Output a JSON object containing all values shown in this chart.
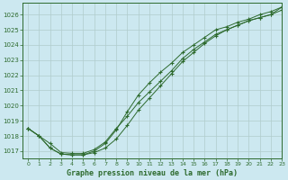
{
  "title": "Graphe pression niveau de la mer (hPa)",
  "bg_color": "#cce8f0",
  "grid_color": "#b0cccc",
  "line_color": "#2d6a2d",
  "xlim": [
    -0.5,
    23
  ],
  "ylim": [
    1016.5,
    1026.8
  ],
  "yticks": [
    1017,
    1018,
    1019,
    1020,
    1021,
    1022,
    1023,
    1024,
    1025,
    1026
  ],
  "xticks": [
    0,
    1,
    2,
    3,
    4,
    5,
    6,
    7,
    8,
    9,
    10,
    11,
    12,
    13,
    14,
    15,
    16,
    17,
    18,
    19,
    20,
    21,
    22,
    23
  ],
  "series": [
    [
      1018.5,
      1018.0,
      1017.5,
      1016.9,
      1016.85,
      1016.85,
      1017.1,
      1017.6,
      1018.5,
      1019.3,
      1020.2,
      1020.9,
      1021.6,
      1022.3,
      1023.1,
      1023.7,
      1024.2,
      1024.7,
      1025.0,
      1025.3,
      1025.6,
      1025.8,
      1026.0,
      1026.5
    ],
    [
      1018.5,
      1018.0,
      1017.2,
      1016.8,
      1016.75,
      1016.75,
      1016.9,
      1017.2,
      1017.8,
      1018.7,
      1019.7,
      1020.5,
      1021.3,
      1022.1,
      1022.9,
      1023.5,
      1024.1,
      1024.6,
      1025.0,
      1025.3,
      1025.6,
      1025.8,
      1026.0,
      1026.3
    ],
    [
      1018.5,
      1018.0,
      1017.2,
      1016.8,
      1016.75,
      1016.75,
      1017.0,
      1017.5,
      1018.4,
      1019.6,
      1020.7,
      1021.5,
      1022.2,
      1022.8,
      1023.5,
      1024.0,
      1024.5,
      1025.0,
      1025.2,
      1025.5,
      1025.7,
      1026.0,
      1026.2,
      1026.5
    ]
  ]
}
